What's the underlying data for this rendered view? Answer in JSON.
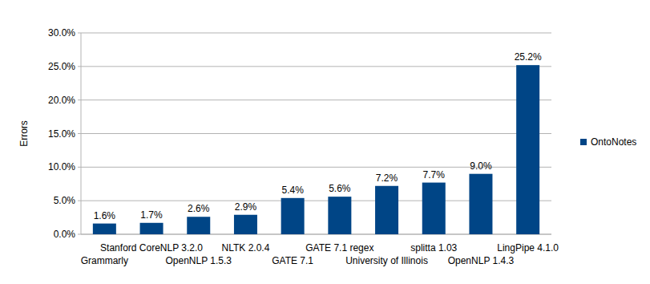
{
  "chart_data": {
    "type": "bar",
    "y_label": "Errors",
    "categories": [
      "Grammarly",
      "Stanford CoreNLP 3.2.0",
      "OpenNLP 1.5.3",
      "NLTK 2.0.4",
      "GATE 7.1",
      "GATE 7.1 regex",
      "University of Illinois",
      "splitta 1.03",
      "OpenNLP 1.4.3",
      "LingPipe 4.1.0"
    ],
    "series": [
      {
        "name": "OntoNotes",
        "color": "#004586",
        "values": [
          1.6,
          1.7,
          2.6,
          2.9,
          5.4,
          5.6,
          7.2,
          7.7,
          9.0,
          25.2
        ],
        "value_labels": [
          "1.6%",
          "1.7%",
          "2.6%",
          "2.9%",
          "5.4%",
          "5.6%",
          "7.2%",
          "7.7%",
          "9.0%",
          "25.2%"
        ]
      }
    ],
    "ylim": [
      0,
      30
    ],
    "yticks": [
      {
        "value": 0,
        "label": "0.0%"
      },
      {
        "value": 5,
        "label": "5.0%"
      },
      {
        "value": 10,
        "label": "10.0%"
      },
      {
        "value": 15,
        "label": "15.0%"
      },
      {
        "value": 20,
        "label": "20.0%"
      },
      {
        "value": 25,
        "label": "25.0%"
      },
      {
        "value": 30,
        "label": "30.0%"
      }
    ],
    "grid": true,
    "legend": "right",
    "data_labels": true
  }
}
